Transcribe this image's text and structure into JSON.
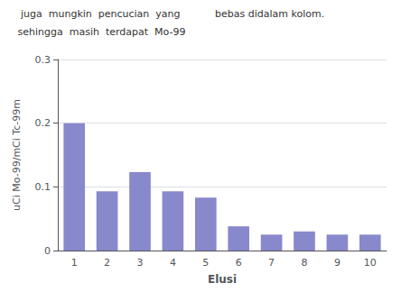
{
  "chart_data": {
    "type": "bar",
    "annotations": [
      "  juga  mungkin  pencucian  yang",
      " sehingga  masih  terdapat  Mo-99",
      "bebas didalam kolom."
    ],
    "categories": [
      1,
      2,
      3,
      4,
      5,
      6,
      7,
      8,
      9,
      10
    ],
    "values": [
      0.2,
      0.093,
      0.123,
      0.093,
      0.083,
      0.038,
      0.025,
      0.03,
      0.025,
      0.025
    ],
    "color": "#8888cc",
    "xlabel": "Elusi",
    "ylabel": "uCi Mo-99/mCi Tc-99m",
    "ylim": [
      0,
      0.3
    ],
    "yticks": [
      0,
      0.1,
      0.2,
      0.3
    ],
    "grid": true
  }
}
